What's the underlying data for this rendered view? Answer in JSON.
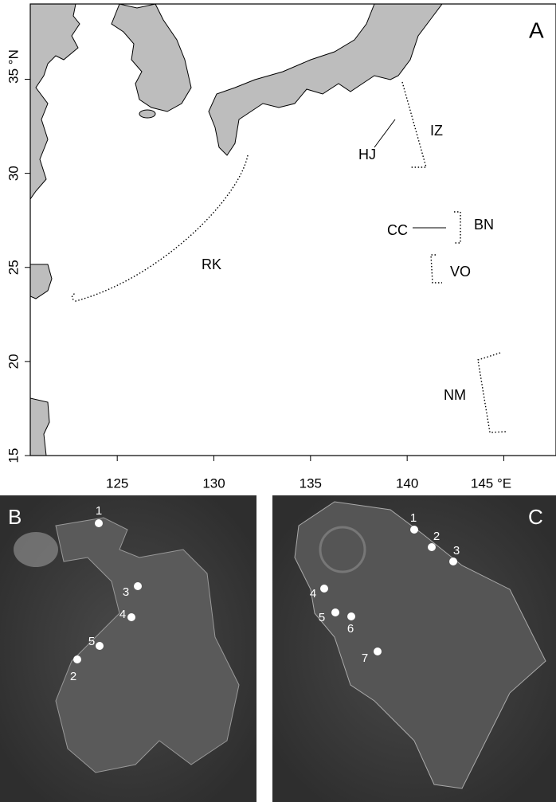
{
  "map": {
    "panel_label": "A",
    "xlim": [
      120.5,
      147.7
    ],
    "ylim": [
      15,
      39
    ],
    "xticks": [
      125,
      130,
      135,
      140,
      {
        "value": 145,
        "label": "145 °E"
      }
    ],
    "yticks": [
      15,
      20,
      25,
      30,
      {
        "value": 35,
        "label": "35 °N"
      }
    ],
    "regions": [
      "IZ",
      "HJ",
      "BN",
      "CC",
      "VO",
      "RK",
      "NM"
    ]
  },
  "panel_b": {
    "label": "B",
    "sites": [
      "1",
      "2",
      "3",
      "4",
      "5"
    ]
  },
  "panel_c": {
    "label": "C",
    "sites": [
      "1",
      "2",
      "3",
      "4",
      "5",
      "6",
      "7"
    ]
  }
}
